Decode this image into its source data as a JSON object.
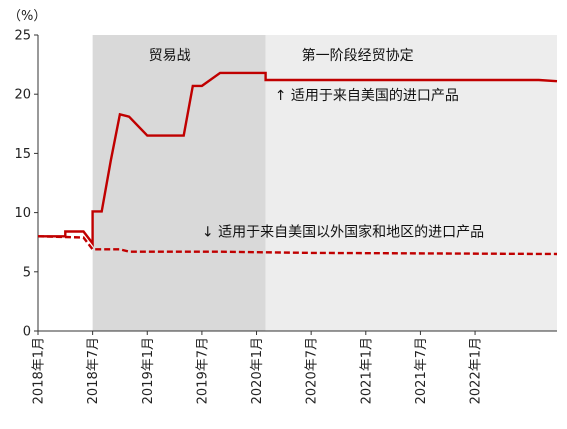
{
  "chart_data": {
    "type": "line",
    "unit_label": "（%）",
    "ylim": [
      0,
      25
    ],
    "y_ticks": [
      0,
      5,
      10,
      15,
      20,
      25
    ],
    "x_start": "2018-01",
    "x_end": "2022-10",
    "x_tick_labels": [
      {
        "date": "2018-01",
        "label": "2018年1月"
      },
      {
        "date": "2018-07",
        "label": "2018年7月"
      },
      {
        "date": "2019-01",
        "label": "2019年1月"
      },
      {
        "date": "2019-07",
        "label": "2019年7月"
      },
      {
        "date": "2020-01",
        "label": "2020年1月"
      },
      {
        "date": "2020-07",
        "label": "2020年7月"
      },
      {
        "date": "2021-01",
        "label": "2021年1月"
      },
      {
        "date": "2021-07",
        "label": "2021年7月"
      },
      {
        "date": "2022-01",
        "label": "2022年1月"
      }
    ],
    "shaded_periods": [
      {
        "label": "贸易战",
        "start": "2018-07",
        "end": "2020-02",
        "color": "#d9d9d9"
      },
      {
        "label": "第一阶段经贸协定",
        "start": "2020-02",
        "end": "2022-10",
        "color": "#ededed"
      }
    ],
    "series": [
      {
        "name": "适用于来自美国的进口产品",
        "annotation": "↑ 适用于来自美国的进口产品",
        "color": "#c00000",
        "style": "solid",
        "points": [
          [
            "2018-01",
            8.0
          ],
          [
            "2018-04",
            8.0
          ],
          [
            "2018-04",
            8.4
          ],
          [
            "2018-06",
            8.4
          ],
          [
            "2018-07",
            7.4
          ],
          [
            "2018-07",
            10.1
          ],
          [
            "2018-08",
            10.1
          ],
          [
            "2018-09",
            14.4
          ],
          [
            "2018-10",
            18.3
          ],
          [
            "2018-11",
            18.1
          ],
          [
            "2019-01",
            16.5
          ],
          [
            "2019-05",
            16.5
          ],
          [
            "2019-06",
            20.7
          ],
          [
            "2019-07",
            20.7
          ],
          [
            "2019-09",
            21.8
          ],
          [
            "2020-02",
            21.8
          ],
          [
            "2020-02",
            21.2
          ],
          [
            "2022-08",
            21.2
          ],
          [
            "2022-10",
            21.1
          ]
        ]
      },
      {
        "name": "适用于来自美国以外国家和地区的进口产品",
        "annotation": "↓ 适用于来自美国以外国家和地区的进口产品",
        "color": "#c00000",
        "style": "dashed",
        "points": [
          [
            "2018-01",
            8.0
          ],
          [
            "2018-06",
            7.9
          ],
          [
            "2018-07",
            6.9
          ],
          [
            "2018-10",
            6.9
          ],
          [
            "2018-11",
            6.7
          ],
          [
            "2019-09",
            6.7
          ],
          [
            "2020-07",
            6.6
          ],
          [
            "2022-10",
            6.5
          ]
        ]
      }
    ]
  }
}
